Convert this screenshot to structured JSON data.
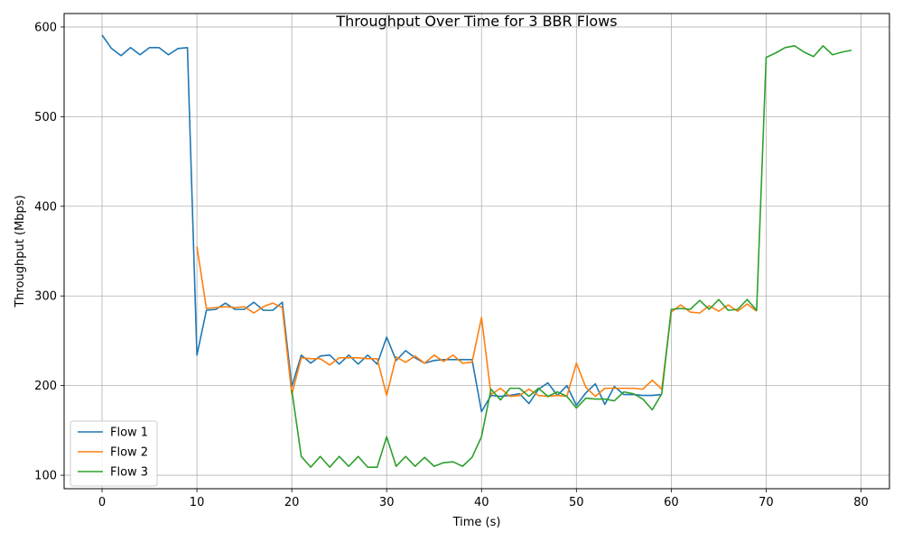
{
  "chart_data": {
    "type": "line",
    "title": "Throughput Over Time for 3 BBR Flows",
    "xlabel": "Time (s)",
    "ylabel": "Throughput (Mbps)",
    "xlim": [
      -4,
      83
    ],
    "ylim": [
      85,
      615
    ],
    "xticks": [
      0,
      10,
      20,
      30,
      40,
      50,
      60,
      70,
      80
    ],
    "yticks": [
      100,
      200,
      300,
      400,
      500,
      600
    ],
    "grid": true,
    "legend_position": "lower-left",
    "series": [
      {
        "name": "Flow 1",
        "color": "#1f77b4",
        "x": [
          0,
          1,
          2,
          3,
          4,
          5,
          6,
          7,
          8,
          9,
          10,
          11,
          12,
          13,
          14,
          15,
          16,
          17,
          18,
          19,
          20,
          21,
          22,
          23,
          24,
          25,
          26,
          27,
          28,
          29,
          30,
          31,
          32,
          33,
          34,
          35,
          36,
          37,
          38,
          39,
          40,
          41,
          42,
          43,
          44,
          45,
          46,
          47,
          48,
          49,
          50,
          51,
          52,
          53,
          54,
          55,
          56,
          57,
          58,
          59
        ],
        "values": [
          591,
          576,
          568,
          577,
          569,
          577,
          577,
          569,
          576,
          577,
          234,
          284,
          285,
          292,
          285,
          285,
          293,
          284,
          284,
          293,
          199,
          234,
          225,
          233,
          234,
          224,
          234,
          224,
          234,
          224,
          254,
          228,
          239,
          231,
          225,
          228,
          229,
          229,
          229,
          229,
          171,
          189,
          188,
          189,
          191,
          180,
          196,
          203,
          189,
          200,
          178,
          192,
          202,
          179,
          199,
          190,
          190,
          189,
          189,
          190
        ],
        "marker": null
      },
      {
        "name": "Flow 2",
        "color": "#ff7f0e",
        "x": [
          10,
          11,
          12,
          13,
          14,
          15,
          16,
          17,
          18,
          19,
          20,
          21,
          22,
          23,
          24,
          25,
          26,
          27,
          28,
          29,
          30,
          31,
          32,
          33,
          34,
          35,
          36,
          37,
          38,
          39,
          40,
          41,
          42,
          43,
          44,
          45,
          46,
          47,
          48,
          49,
          50,
          51,
          52,
          53,
          54,
          55,
          56,
          57,
          58,
          59,
          60,
          61,
          62,
          63,
          64,
          65,
          66,
          67,
          68,
          69
        ],
        "values": [
          355,
          286,
          287,
          288,
          287,
          288,
          281,
          288,
          292,
          287,
          190,
          231,
          230,
          230,
          223,
          231,
          231,
          231,
          230,
          230,
          189,
          232,
          226,
          233,
          225,
          234,
          227,
          234,
          225,
          226,
          276,
          190,
          197,
          188,
          189,
          196,
          189,
          188,
          189,
          188,
          225,
          198,
          188,
          197,
          197,
          197,
          197,
          196,
          206,
          196,
          282,
          290,
          282,
          281,
          289,
          283,
          290,
          283,
          291,
          283
        ]
      },
      {
        "name": "Flow 3",
        "color": "#2ca02c",
        "x": [
          20,
          21,
          22,
          23,
          24,
          25,
          26,
          27,
          28,
          29,
          30,
          31,
          32,
          33,
          34,
          35,
          36,
          37,
          38,
          39,
          40,
          41,
          42,
          43,
          44,
          45,
          46,
          47,
          48,
          49,
          50,
          51,
          52,
          53,
          54,
          55,
          56,
          57,
          58,
          59,
          60,
          61,
          62,
          63,
          64,
          65,
          66,
          67,
          68,
          69,
          70,
          71,
          72,
          73,
          74,
          75,
          76,
          77,
          78,
          79
        ],
        "values": [
          195,
          121,
          109,
          121,
          109,
          121,
          110,
          121,
          109,
          109,
          143,
          110,
          121,
          110,
          120,
          110,
          114,
          115,
          110,
          120,
          143,
          196,
          184,
          197,
          197,
          188,
          197,
          188,
          193,
          188,
          175,
          186,
          185,
          185,
          183,
          193,
          191,
          185,
          173,
          191,
          285,
          286,
          285,
          295,
          285,
          296,
          284,
          285,
          296,
          284,
          566,
          571,
          577,
          579,
          572,
          567,
          579,
          569,
          572,
          574
        ]
      }
    ]
  }
}
